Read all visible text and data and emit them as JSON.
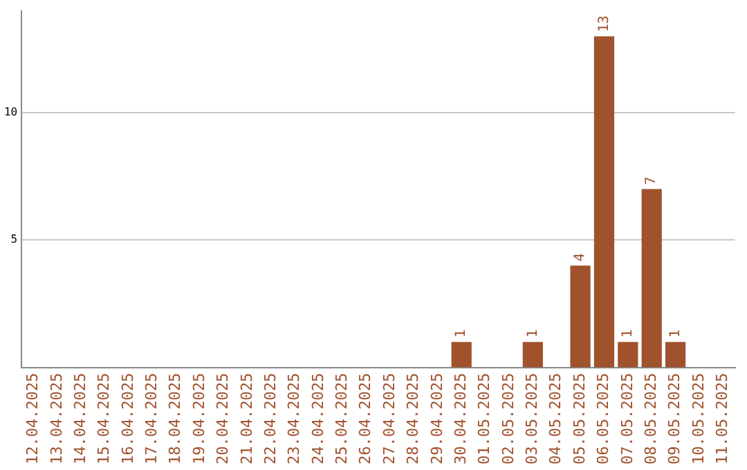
{
  "chart_data": {
    "type": "bar",
    "categories": [
      "12.04.2025",
      "13.04.2025",
      "14.04.2025",
      "15.04.2025",
      "16.04.2025",
      "17.04.2025",
      "18.04.2025",
      "19.04.2025",
      "20.04.2025",
      "21.04.2025",
      "22.04.2025",
      "23.04.2025",
      "24.04.2025",
      "25.04.2025",
      "26.04.2025",
      "27.04.2025",
      "28.04.2025",
      "29.04.2025",
      "30.04.2025",
      "01.05.2025",
      "02.05.2025",
      "03.05.2025",
      "04.05.2025",
      "05.05.2025",
      "06.05.2025",
      "07.05.2025",
      "08.05.2025",
      "09.05.2025",
      "10.05.2025",
      "11.05.2025"
    ],
    "values": [
      null,
      null,
      null,
      null,
      null,
      null,
      null,
      null,
      null,
      null,
      null,
      null,
      null,
      null,
      null,
      null,
      null,
      null,
      1,
      null,
      null,
      1,
      null,
      4,
      13,
      1,
      7,
      1,
      null,
      null
    ],
    "color": "#a0522d",
    "ylim": [
      0,
      14
    ],
    "yticks": [
      5,
      10
    ],
    "grid": "y",
    "data_labels": true,
    "legend": false
  }
}
